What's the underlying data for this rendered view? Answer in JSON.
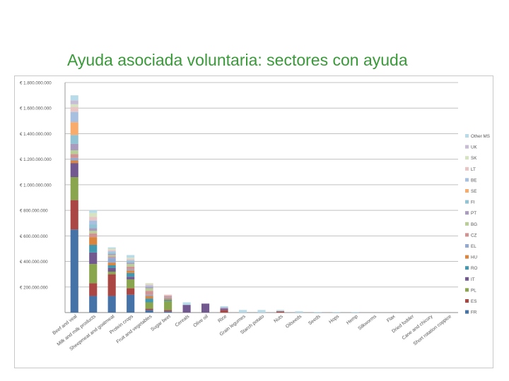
{
  "slide": {
    "title": "Ayuda asociada voluntaria: sectores con ayuda"
  },
  "chart_data": {
    "type": "bar",
    "stacked": true,
    "title": "",
    "xlabel": "",
    "ylabel": "",
    "ylim": [
      0,
      1800000000
    ],
    "y_ticks": [
      0,
      200000000,
      400000000,
      600000000,
      800000000,
      1000000000,
      1200000000,
      1400000000,
      1600000000,
      1800000000
    ],
    "y_tick_labels": [
      "",
      "€ 200.000.000",
      "€ 400.000.000",
      "€ 600.000.000",
      "€ 800.000.000",
      "€ 1.000.000.000",
      "€ 1.200.000.000",
      "€ 1.400.000.000",
      "€ 1.600.000.000",
      "€ 1.800.000.000"
    ],
    "grid": true,
    "legend_position": "right",
    "categories": [
      "Beef and veal",
      "Milk and milk products",
      "Sheepmeat and goatmeat",
      "Protein crops",
      "Fruit and vegetables",
      "Sugar beet",
      "Cereals",
      "Olive oil",
      "Rice",
      "Grain legumes",
      "Starch potato",
      "Nuts",
      "Oilseeds",
      "Seeds",
      "Hops",
      "Hemp",
      "Silkworms",
      "Flax",
      "Dried fodder",
      "Cane and chicory",
      "Short rotation coppice"
    ],
    "series": [
      {
        "name": "FR",
        "color": "#4572a7",
        "values": [
          650000000,
          130000000,
          130000000,
          140000000,
          20000000,
          10000000,
          0,
          0,
          0,
          0,
          0,
          0,
          0,
          0,
          0,
          0,
          0,
          0,
          0,
          0,
          0
        ]
      },
      {
        "name": "ES",
        "color": "#aa4643",
        "values": [
          230000000,
          100000000,
          170000000,
          50000000,
          10000000,
          10000000,
          0,
          0,
          20000000,
          0,
          0,
          10000000,
          0,
          0,
          0,
          0,
          0,
          0,
          0,
          0,
          0
        ]
      },
      {
        "name": "PL",
        "color": "#89a54e",
        "values": [
          180000000,
          150000000,
          20000000,
          70000000,
          50000000,
          70000000,
          0,
          0,
          0,
          0,
          0,
          0,
          0,
          0,
          0,
          0,
          0,
          0,
          0,
          0,
          0
        ]
      },
      {
        "name": "IT",
        "color": "#71588f",
        "values": [
          110000000,
          90000000,
          30000000,
          20000000,
          0,
          0,
          60000000,
          70000000,
          10000000,
          0,
          0,
          0,
          0,
          0,
          0,
          0,
          0,
          0,
          0,
          0,
          0
        ]
      },
      {
        "name": "RO",
        "color": "#4198af",
        "values": [
          0,
          60000000,
          20000000,
          30000000,
          30000000,
          10000000,
          0,
          0,
          0,
          0,
          0,
          0,
          0,
          0,
          0,
          0,
          0,
          0,
          0,
          0,
          0
        ]
      },
      {
        "name": "HU",
        "color": "#db843d",
        "values": [
          20000000,
          60000000,
          20000000,
          20000000,
          20000000,
          10000000,
          0,
          0,
          0,
          0,
          0,
          0,
          0,
          0,
          0,
          0,
          0,
          0,
          0,
          0,
          0
        ]
      },
      {
        "name": "EL",
        "color": "#93a9cf",
        "values": [
          20000000,
          0,
          40000000,
          10000000,
          10000000,
          10000000,
          0,
          0,
          0,
          0,
          0,
          0,
          0,
          0,
          0,
          0,
          0,
          0,
          0,
          0,
          0
        ]
      },
      {
        "name": "CZ",
        "color": "#d19392",
        "values": [
          30000000,
          30000000,
          10000000,
          20000000,
          30000000,
          10000000,
          0,
          0,
          0,
          0,
          0,
          0,
          0,
          0,
          0,
          0,
          0,
          0,
          0,
          0,
          0
        ]
      },
      {
        "name": "BG",
        "color": "#b9cd96",
        "values": [
          30000000,
          20000000,
          10000000,
          20000000,
          20000000,
          0,
          0,
          0,
          0,
          0,
          0,
          0,
          0,
          0,
          0,
          0,
          0,
          0,
          0,
          0,
          0
        ]
      },
      {
        "name": "PT",
        "color": "#a99bbd",
        "values": [
          50000000,
          20000000,
          10000000,
          10000000,
          10000000,
          0,
          0,
          0,
          10000000,
          0,
          0,
          0,
          0,
          0,
          0,
          0,
          0,
          0,
          0,
          0,
          0
        ]
      },
      {
        "name": "FI",
        "color": "#91c3d5",
        "values": [
          70000000,
          30000000,
          10000000,
          10000000,
          0,
          0,
          0,
          0,
          0,
          0,
          0,
          0,
          0,
          0,
          0,
          0,
          0,
          0,
          0,
          0,
          0
        ]
      },
      {
        "name": "SE",
        "color": "#f9ab6b",
        "values": [
          100000000,
          0,
          0,
          0,
          0,
          0,
          0,
          0,
          0,
          0,
          0,
          0,
          0,
          0,
          0,
          0,
          0,
          0,
          0,
          0,
          0
        ]
      },
      {
        "name": "BE",
        "color": "#a8c0df",
        "values": [
          80000000,
          30000000,
          10000000,
          10000000,
          10000000,
          0,
          0,
          0,
          0,
          0,
          0,
          0,
          0,
          0,
          0,
          0,
          0,
          0,
          0,
          0,
          0
        ]
      },
      {
        "name": "LT",
        "color": "#e6c5c4",
        "values": [
          40000000,
          30000000,
          10000000,
          10000000,
          10000000,
          10000000,
          0,
          0,
          0,
          0,
          0,
          0,
          0,
          0,
          0,
          0,
          0,
          0,
          0,
          0,
          0
        ]
      },
      {
        "name": "SK",
        "color": "#d5e3c1",
        "values": [
          20000000,
          30000000,
          10000000,
          10000000,
          10000000,
          0,
          0,
          0,
          0,
          0,
          0,
          0,
          0,
          0,
          0,
          0,
          0,
          0,
          0,
          0,
          0
        ]
      },
      {
        "name": "UK",
        "color": "#c6bdd4",
        "values": [
          30000000,
          0,
          0,
          0,
          0,
          0,
          0,
          0,
          0,
          0,
          0,
          0,
          0,
          0,
          0,
          0,
          0,
          0,
          0,
          0,
          0
        ]
      },
      {
        "name": "Other MS",
        "color": "#b7dbe8",
        "values": [
          40000000,
          20000000,
          10000000,
          20000000,
          0,
          0,
          20000000,
          0,
          10000000,
          20000000,
          20000000,
          10000000,
          10000000,
          5000000,
          5000000,
          5000000,
          0,
          0,
          0,
          0,
          0
        ]
      }
    ]
  }
}
